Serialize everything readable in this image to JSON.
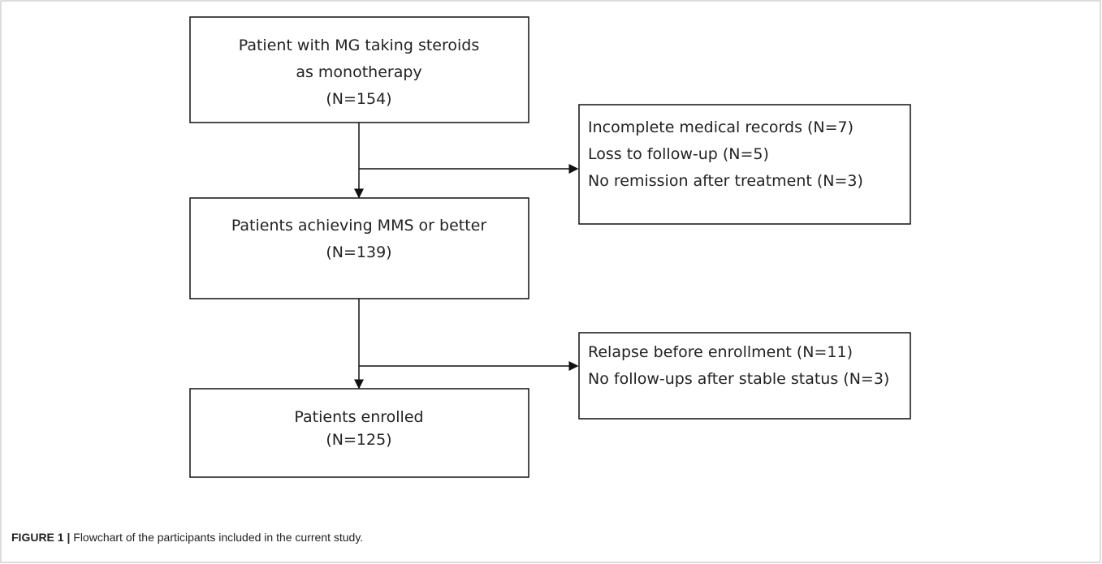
{
  "nodes": [
    {
      "lines": [
        "Patient with MG taking steroids",
        "as monotherapy",
        "(N=154)"
      ]
    },
    {
      "lines": [
        "Incomplete medical records (N=7)",
        "Loss to follow-up (N=5)",
        "No remission after treatment (N=3)"
      ]
    },
    {
      "lines": [
        "Patients achieving MMS or better",
        "(N=139)"
      ]
    },
    {
      "lines": [
        "Relapse before enrollment (N=11)",
        "No follow-ups after stable status (N=3)"
      ]
    },
    {
      "lines": [
        "Patients enrolled",
        "(N=125)"
      ]
    }
  ],
  "caption": {
    "label": "FIGURE 1 |",
    "text": " Flowchart of the participants included in the current study."
  }
}
